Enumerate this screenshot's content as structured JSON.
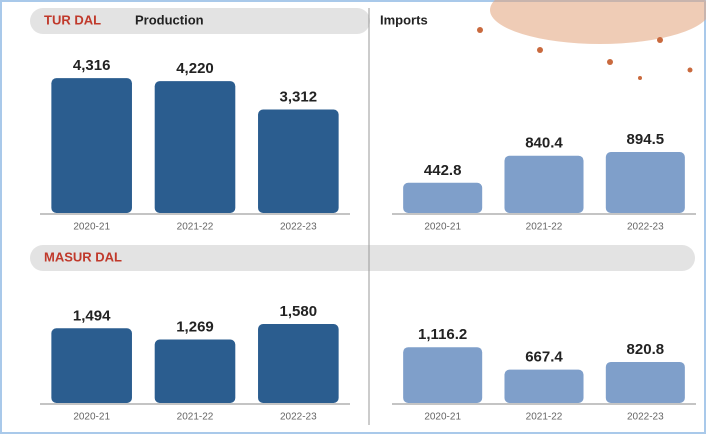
{
  "chart_data": [
    {
      "type": "bar",
      "section": "TUR DAL",
      "title": "Production",
      "categories": [
        "2020-21",
        "2021-22",
        "2022-23"
      ],
      "values": [
        4316,
        4220,
        3312
      ],
      "value_labels": [
        "4,316",
        "4,220",
        "3,312"
      ],
      "color": "#2b5d8f",
      "ylim": [
        0,
        4800
      ]
    },
    {
      "type": "bar",
      "title": "Imports",
      "categories": [
        "2020-21",
        "2021-22",
        "2022-23"
      ],
      "values": [
        442.8,
        840.4,
        894.5
      ],
      "color": "#7f9fca",
      "ylim": [
        0,
        2200
      ]
    },
    {
      "type": "bar",
      "section": "MASUR DAL",
      "categories": [
        "2020-21",
        "2021-22",
        "2022-23"
      ],
      "values": [
        1494,
        1269,
        1580
      ],
      "value_labels": [
        "1,494",
        "1,269",
        "1,580"
      ],
      "color": "#2b5d8f",
      "ylim": [
        0,
        2200
      ]
    },
    {
      "type": "bar",
      "categories": [
        "2020-21",
        "2021-22",
        "2022-23"
      ],
      "values": [
        1116.2,
        667.4,
        820.8
      ],
      "value_labels": [
        "1,116.2",
        "667.4",
        "820.8"
      ],
      "color": "#7f9fca",
      "ylim": [
        0,
        2200
      ]
    }
  ]
}
